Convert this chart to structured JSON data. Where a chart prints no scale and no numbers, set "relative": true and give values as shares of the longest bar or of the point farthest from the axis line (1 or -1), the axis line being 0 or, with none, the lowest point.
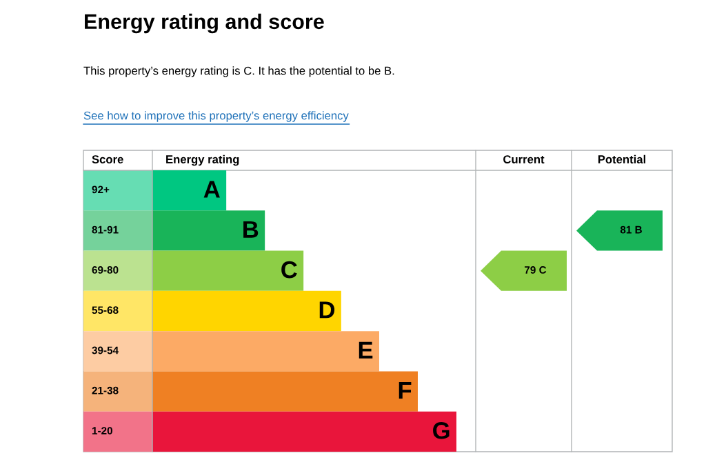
{
  "chart_data": {
    "type": "bar",
    "orientation": "horizontal",
    "relative": true,
    "title": "Energy rating and score",
    "subtitle": "This property’s energy rating is C. It has the potential to be B.",
    "categories": [
      "A",
      "B",
      "C",
      "D",
      "E",
      "F",
      "G"
    ],
    "values": [
      0.243,
      0.37,
      0.497,
      0.621,
      0.746,
      0.873,
      1.0
    ],
    "colors": [
      "#00c781",
      "#19b459",
      "#8dce46",
      "#ffd500",
      "#fcaa65",
      "#ef8023",
      "#e9153b"
    ],
    "annotations": [
      "See how to improve this property’s energy efficiency",
      "Score",
      "Energy rating",
      "Current",
      "Potential",
      "79 C",
      "81 B",
      "92+",
      "81-91",
      "69-80",
      "55-68",
      "39-54",
      "21-38",
      "1-20"
    ]
  }
}
